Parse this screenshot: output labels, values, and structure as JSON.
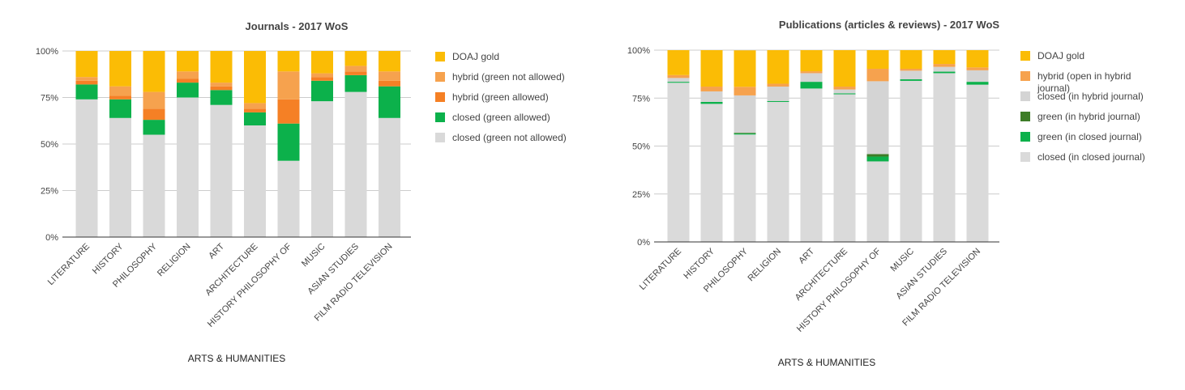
{
  "chart_data": [
    {
      "type": "bar",
      "stacked": true,
      "normalized": true,
      "title": "Journals - 2017 WoS",
      "xlabel": "ARTS & HUMANITIES",
      "ylabel": "",
      "ylim": [
        0,
        100
      ],
      "yticks": [
        "0%",
        "25%",
        "50%",
        "75%",
        "100%"
      ],
      "grid": true,
      "legend_position": "right",
      "categories": [
        "LITERATURE",
        "HISTORY",
        "PHILOSOPHY",
        "RELIGION",
        "ART",
        "ARCHITECTURE",
        "HISTORY PHILOSOPHY OF",
        "MUSIC",
        "ASIAN STUDIES",
        "FILM RADIO TELEVISION"
      ],
      "series": [
        {
          "name": "closed (green not allowed)",
          "color": "#d9d9d9",
          "values": [
            74,
            64,
            55,
            75,
            71,
            60,
            41,
            73,
            78,
            64
          ]
        },
        {
          "name": "closed (green allowed)",
          "color": "#0cb14b",
          "values": [
            8,
            10,
            8,
            8,
            8,
            7,
            20,
            11,
            9,
            17
          ]
        },
        {
          "name": "hybrid (green allowed)",
          "color": "#f58025",
          "values": [
            2,
            2,
            6,
            2,
            2,
            2,
            13,
            2,
            2,
            3
          ]
        },
        {
          "name": "hybrid (green not allowed)",
          "color": "#f6a24e",
          "values": [
            2,
            5,
            9,
            4,
            2,
            3,
            15,
            2,
            3,
            5
          ]
        },
        {
          "name": "DOAJ gold",
          "color": "#fbbc05",
          "values": [
            14,
            19,
            22,
            11,
            17,
            28,
            11,
            12,
            8,
            11
          ]
        }
      ],
      "legend_order": [
        "DOAJ gold",
        "hybrid (green not allowed)",
        "hybrid (green allowed)",
        "closed (green allowed)",
        "closed (green not allowed)"
      ]
    },
    {
      "type": "bar",
      "stacked": true,
      "normalized": true,
      "title": "Publications (articles & reviews) - 2017 WoS",
      "xlabel": "ARTS & HUMANITIES",
      "ylabel": "",
      "ylim": [
        0,
        100
      ],
      "yticks": [
        "0%",
        "25%",
        "50%",
        "75%",
        "100%"
      ],
      "grid": true,
      "legend_position": "right",
      "categories": [
        "LITERATURE",
        "HISTORY",
        "PHILOSOPHY",
        "RELIGION",
        "ART",
        "ARCHITECTURE",
        "HISTORY PHILOSOPHY OF",
        "MUSIC",
        "ASIAN STUDIES",
        "FILM RADIO TELEVISION"
      ],
      "series": [
        {
          "name": "closed (in closed journal)",
          "color": "#dadada",
          "values": [
            83,
            72,
            56,
            73,
            80,
            77,
            42,
            84,
            88,
            82
          ]
        },
        {
          "name": "green (in closed journal)",
          "color": "#0cb14b",
          "values": [
            0.5,
            1,
            0.5,
            0.5,
            3.5,
            0.5,
            2.5,
            0.8,
            0.8,
            1.5
          ]
        },
        {
          "name": "green (in hybrid journal)",
          "color": "#3d7d27",
          "values": [
            0,
            0,
            0.4,
            0,
            0,
            0,
            1.3,
            0,
            0,
            0
          ]
        },
        {
          "name": "closed (in hybrid journal)",
          "color": "#d4d4d4",
          "values": [
            2,
            5.5,
            19.5,
            7.5,
            4.5,
            2,
            38,
            4.5,
            2.5,
            6
          ]
        },
        {
          "name": "hybrid (open in hybrid journal)",
          "color": "#f6a24e",
          "values": [
            1.5,
            2.5,
            4.5,
            1.5,
            1,
            1.5,
            6.5,
            1,
            1.5,
            1.5
          ]
        },
        {
          "name": "DOAJ gold",
          "color": "#fbbc05",
          "values": [
            13,
            19,
            19,
            17.5,
            11,
            19,
            9.7,
            9.7,
            7.2,
            9
          ]
        }
      ],
      "legend_order": [
        "DOAJ gold",
        "hybrid (open in hybrid journal)",
        "closed (in hybrid journal)",
        "green (in hybrid journal)",
        "green (in closed journal)",
        "closed (in closed journal)"
      ]
    }
  ]
}
